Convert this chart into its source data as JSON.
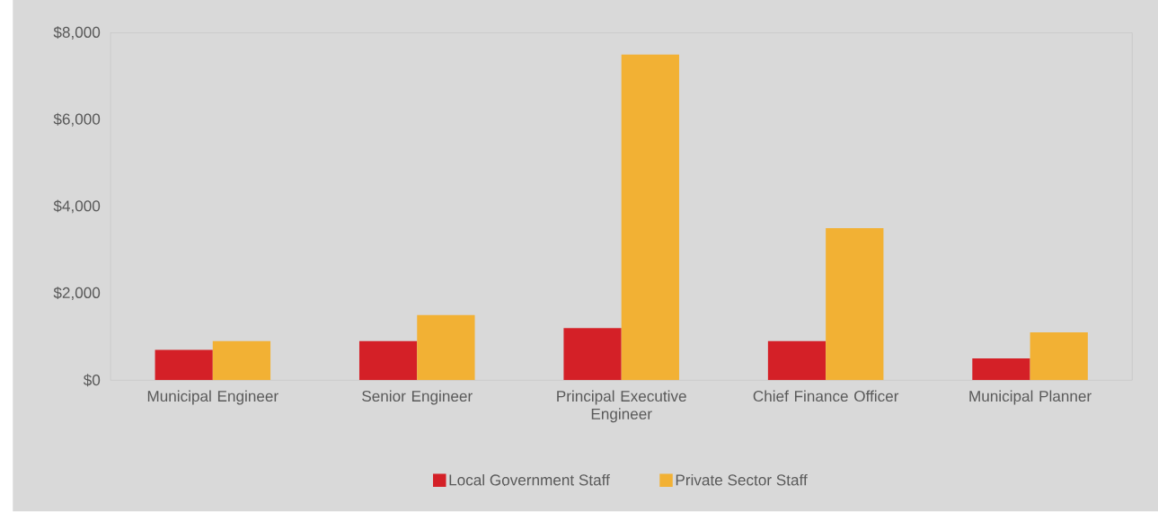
{
  "chart_data": {
    "type": "bar",
    "categories": [
      "Municipal Engineer",
      "Senior Engineer",
      "Principal Executive Engineer",
      "Chief Finance Officer",
      "Municipal Planner"
    ],
    "series": [
      {
        "name": "Local Government Staff",
        "color": "#d42027",
        "values": [
          700,
          900,
          1200,
          900,
          500
        ]
      },
      {
        "name": "Private Sector Staff",
        "color": "#f2b134",
        "values": [
          900,
          1500,
          7500,
          3500,
          1100
        ]
      }
    ],
    "ylim": [
      0,
      8000
    ],
    "yticks": [
      {
        "value": 0,
        "label": "$0"
      },
      {
        "value": 2000,
        "label": "$2,000"
      },
      {
        "value": 4000,
        "label": "$4,000"
      },
      {
        "value": 6000,
        "label": "$6,000"
      },
      {
        "value": 8000,
        "label": "$8,000"
      }
    ],
    "legend": "bottom"
  }
}
